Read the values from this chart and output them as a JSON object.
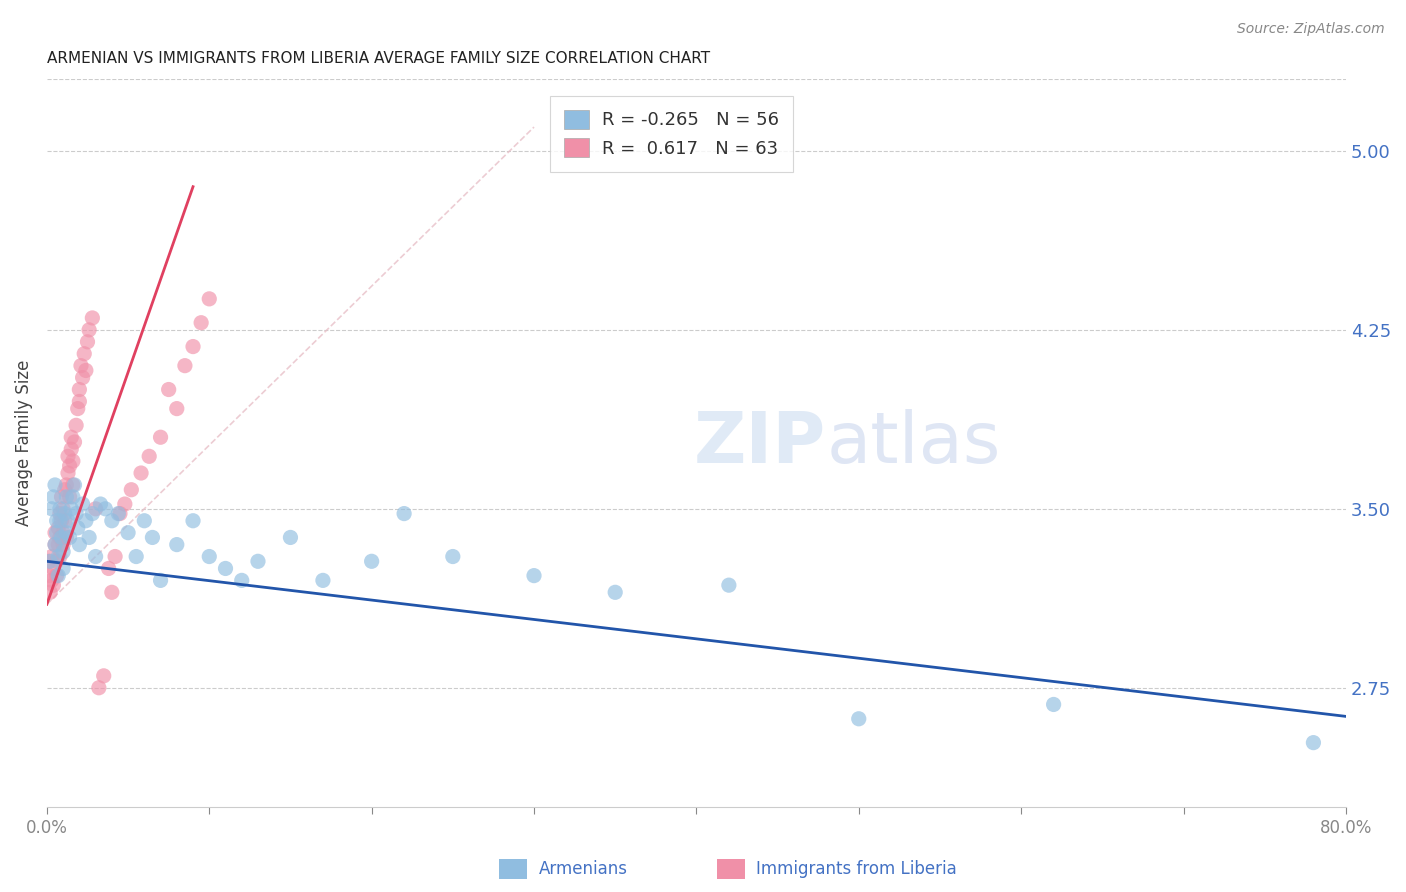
{
  "title": "ARMENIAN VS IMMIGRANTS FROM LIBERIA AVERAGE FAMILY SIZE CORRELATION CHART",
  "source": "Source: ZipAtlas.com",
  "ylabel": "Average Family Size",
  "yticks": [
    2.75,
    3.5,
    4.25,
    5.0
  ],
  "xlim": [
    0.0,
    0.8
  ],
  "ylim": [
    2.25,
    5.3
  ],
  "watermark": "ZIPatlas",
  "armenians_color": "#90bde0",
  "liberia_color": "#f090a8",
  "trendline_armenians_color": "#2255aa",
  "trendline_liberia_color": "#e04060",
  "ref_line_color": "#e8c0c8",
  "armenians_x": [
    0.002,
    0.003,
    0.004,
    0.005,
    0.005,
    0.006,
    0.006,
    0.007,
    0.007,
    0.008,
    0.008,
    0.009,
    0.01,
    0.01,
    0.011,
    0.012,
    0.012,
    0.013,
    0.014,
    0.015,
    0.016,
    0.017,
    0.018,
    0.019,
    0.02,
    0.022,
    0.024,
    0.026,
    0.028,
    0.03,
    0.033,
    0.036,
    0.04,
    0.044,
    0.05,
    0.055,
    0.06,
    0.065,
    0.07,
    0.08,
    0.09,
    0.1,
    0.11,
    0.12,
    0.13,
    0.15,
    0.17,
    0.2,
    0.22,
    0.25,
    0.3,
    0.35,
    0.42,
    0.5,
    0.62,
    0.78
  ],
  "armenians_y": [
    3.28,
    3.5,
    3.55,
    3.35,
    3.6,
    3.4,
    3.45,
    3.3,
    3.22,
    3.45,
    3.5,
    3.38,
    3.25,
    3.32,
    3.48,
    3.55,
    3.4,
    3.45,
    3.38,
    3.5,
    3.55,
    3.6,
    3.48,
    3.42,
    3.35,
    3.52,
    3.45,
    3.38,
    3.48,
    3.3,
    3.52,
    3.5,
    3.45,
    3.48,
    3.4,
    3.3,
    3.45,
    3.38,
    3.2,
    3.35,
    3.45,
    3.3,
    3.25,
    3.2,
    3.28,
    3.38,
    3.2,
    3.28,
    3.48,
    3.3,
    3.22,
    3.15,
    3.18,
    2.62,
    2.68,
    2.52
  ],
  "liberia_x": [
    0.001,
    0.002,
    0.002,
    0.003,
    0.003,
    0.004,
    0.004,
    0.005,
    0.005,
    0.006,
    0.006,
    0.007,
    0.007,
    0.008,
    0.008,
    0.008,
    0.009,
    0.009,
    0.01,
    0.01,
    0.01,
    0.011,
    0.011,
    0.012,
    0.012,
    0.013,
    0.013,
    0.014,
    0.014,
    0.015,
    0.015,
    0.016,
    0.016,
    0.017,
    0.018,
    0.019,
    0.02,
    0.02,
    0.021,
    0.022,
    0.023,
    0.024,
    0.025,
    0.026,
    0.028,
    0.03,
    0.032,
    0.035,
    0.038,
    0.04,
    0.042,
    0.045,
    0.048,
    0.052,
    0.058,
    0.063,
    0.07,
    0.075,
    0.08,
    0.085,
    0.09,
    0.095,
    0.1
  ],
  "liberia_y": [
    3.28,
    3.15,
    3.22,
    3.3,
    3.2,
    3.18,
    3.25,
    3.35,
    3.4,
    3.28,
    3.22,
    3.35,
    3.42,
    3.48,
    3.38,
    3.3,
    3.45,
    3.55,
    3.4,
    3.35,
    3.5,
    3.58,
    3.45,
    3.6,
    3.38,
    3.65,
    3.72,
    3.68,
    3.55,
    3.75,
    3.8,
    3.7,
    3.6,
    3.78,
    3.85,
    3.92,
    3.95,
    4.0,
    4.1,
    4.05,
    4.15,
    4.08,
    4.2,
    4.25,
    4.3,
    3.5,
    2.75,
    2.8,
    3.25,
    3.15,
    3.3,
    3.48,
    3.52,
    3.58,
    3.65,
    3.72,
    3.8,
    4.0,
    3.92,
    4.1,
    4.18,
    4.28,
    4.38
  ],
  "legend_r_texts": [
    "R = -0.265",
    "R =  0.617"
  ],
  "legend_n_texts": [
    "N = 56",
    "N = 63"
  ],
  "legend_colors": [
    "#90bde0",
    "#f090a8"
  ],
  "bottom_legend_labels": [
    "Armenians",
    "Immigrants from Liberia"
  ],
  "bottom_legend_colors": [
    "#90bde0",
    "#f090a8"
  ]
}
